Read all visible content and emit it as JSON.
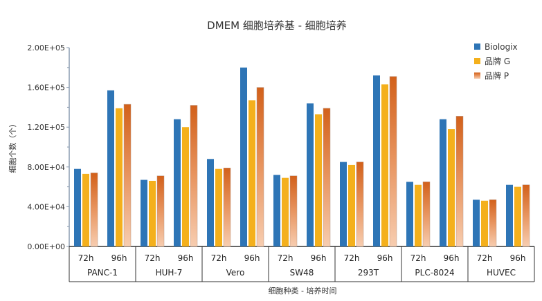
{
  "chart_data": {
    "type": "bar",
    "title": "DMEM 细胞培养基 - 细胞培养",
    "xlabel": "细胞种类 - 培养时间",
    "ylabel": "细胞个数（个）",
    "ylim": [
      0,
      200000
    ],
    "yticks": [
      "0.00E+00",
      "4.00E+04",
      "8.00E+04",
      "1.20E+05",
      "1.60E+05",
      "2.00E+05"
    ],
    "groups": [
      "PANC-1",
      "HUH-7",
      "Vero",
      "SW48",
      "293T",
      "PLC-8024",
      "HUVEC"
    ],
    "subcategories": [
      "72h",
      "96h"
    ],
    "legend_position": "top-right",
    "grid": false,
    "series": [
      {
        "name": "Biologix",
        "color": "#2e75b6",
        "values": [
          78000,
          157000,
          67000,
          128000,
          88000,
          180000,
          72000,
          144000,
          85000,
          172000,
          65000,
          128000,
          47000,
          62000
        ]
      },
      {
        "name": "品牌 G",
        "color": "#f4b01c",
        "values": [
          73000,
          139000,
          66000,
          120000,
          78000,
          147000,
          69000,
          133000,
          82000,
          163000,
          62000,
          118000,
          46000,
          60000
        ]
      },
      {
        "name": "品牌 P",
        "color": "#d9641a",
        "values": [
          74000,
          143000,
          71000,
          142000,
          79000,
          160000,
          71000,
          139000,
          85000,
          171000,
          65000,
          131000,
          47000,
          62000
        ]
      }
    ]
  }
}
